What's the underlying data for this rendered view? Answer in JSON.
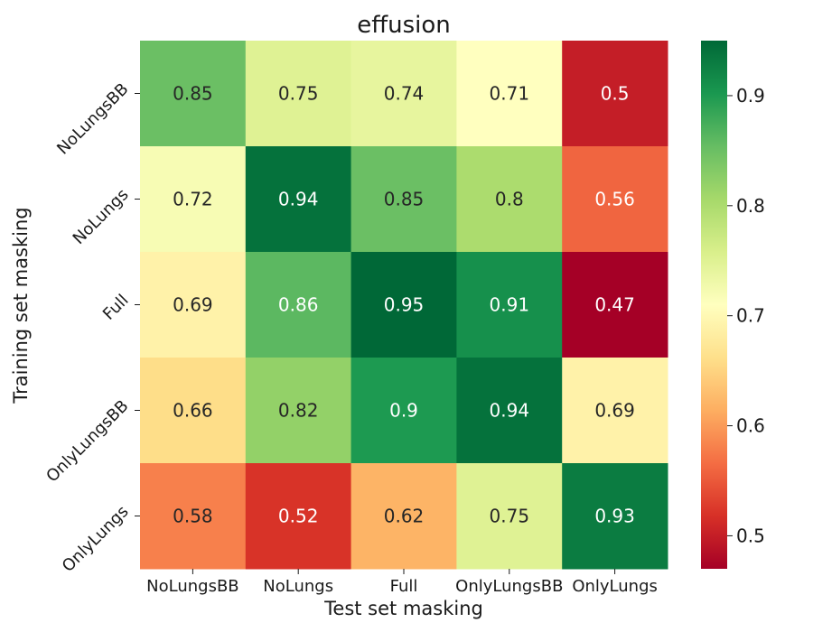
{
  "chart_data": {
    "type": "heatmap",
    "title": "effusion",
    "xlabel": "Test set masking",
    "ylabel": "Training set masking",
    "x_categories": [
      "NoLungsBB",
      "NoLungs",
      "Full",
      "OnlyLungsBB",
      "OnlyLungs"
    ],
    "y_categories": [
      "NoLungsBB",
      "NoLungs",
      "Full",
      "OnlyLungsBB",
      "OnlyLungs"
    ],
    "values": [
      [
        0.85,
        0.75,
        0.74,
        0.71,
        0.5
      ],
      [
        0.72,
        0.94,
        0.85,
        0.8,
        0.56
      ],
      [
        0.69,
        0.86,
        0.95,
        0.91,
        0.47
      ],
      [
        0.66,
        0.82,
        0.9,
        0.94,
        0.69
      ],
      [
        0.58,
        0.52,
        0.62,
        0.75,
        0.93
      ]
    ],
    "value_labels": [
      [
        "0.85",
        "0.75",
        "0.74",
        "0.71",
        "0.5"
      ],
      [
        "0.72",
        "0.94",
        "0.85",
        "0.8",
        "0.56"
      ],
      [
        "0.69",
        "0.86",
        "0.95",
        "0.91",
        "0.47"
      ],
      [
        "0.66",
        "0.82",
        "0.9",
        "0.94",
        "0.69"
      ],
      [
        "0.58",
        "0.52",
        "0.62",
        "0.75",
        "0.93"
      ]
    ],
    "colormap": "RdYlGn",
    "vmin": 0.47,
    "vmax": 0.95,
    "colorbar_ticks": [
      0.5,
      0.6,
      0.7,
      0.8,
      0.9
    ],
    "colorbar_tick_labels": [
      "0.5",
      "0.6",
      "0.7",
      "0.8",
      "0.9"
    ],
    "colorbar_placement": "right",
    "grid": false
  }
}
